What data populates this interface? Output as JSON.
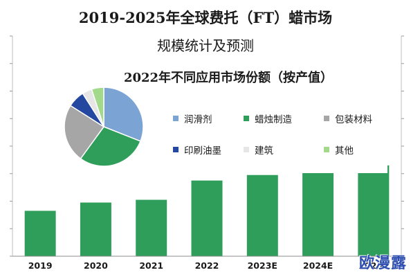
{
  "title_line1": "2019-2025年全球费托（FT）蜡市场",
  "title_line2": "规模统计及预测",
  "watermark": "欧漫露",
  "chart_data": [
    {
      "type": "bar",
      "categories": [
        "2019",
        "2020",
        "2021",
        "2022",
        "2023E",
        "2024E",
        "2025E"
      ],
      "values": [
        16.5,
        19.5,
        20.5,
        27.5,
        29.5,
        30.5,
        33
      ],
      "ylim": [
        0,
        80
      ],
      "grid": false,
      "bar_color": "#2e9e5a"
    },
    {
      "type": "pie",
      "title": "2022年不同应用市场份额（按产值）",
      "labels": [
        "润滑剂",
        "蜡烛制造",
        "包装材料",
        "印刷油墨",
        "建筑",
        "其他"
      ],
      "values": [
        31,
        29,
        24,
        7,
        4,
        5
      ],
      "colors": [
        "#7ba4d4",
        "#2e9e5a",
        "#a6a6a6",
        "#2447a0",
        "#e6e6e6",
        "#a3d98b"
      ],
      "legend_position": "right"
    }
  ]
}
